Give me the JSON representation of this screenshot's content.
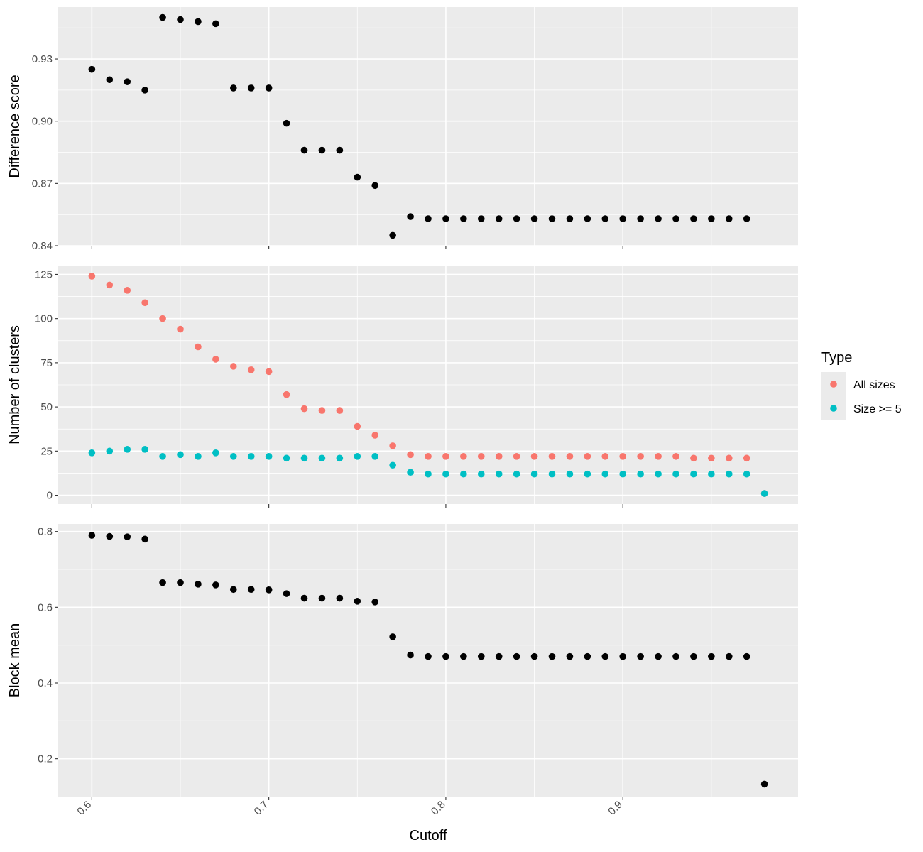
{
  "chart_data": [
    {
      "type": "scatter",
      "ylabel": "Difference score",
      "ylim": [
        0.84,
        0.955
      ],
      "yticks": [
        "0.84",
        "0.87",
        "0.90",
        "0.93"
      ],
      "x_tick_labels_visible": false,
      "grid": true,
      "series": [
        {
          "color": "#000000",
          "points": [
            [
              0.6,
              0.925
            ],
            [
              0.61,
              0.92
            ],
            [
              0.62,
              0.919
            ],
            [
              0.63,
              0.915
            ],
            [
              0.64,
              0.95
            ],
            [
              0.65,
              0.949
            ],
            [
              0.66,
              0.948
            ],
            [
              0.67,
              0.947
            ],
            [
              0.68,
              0.916
            ],
            [
              0.69,
              0.916
            ],
            [
              0.7,
              0.916
            ],
            [
              0.71,
              0.899
            ],
            [
              0.72,
              0.886
            ],
            [
              0.73,
              0.886
            ],
            [
              0.74,
              0.886
            ],
            [
              0.75,
              0.873
            ],
            [
              0.76,
              0.869
            ],
            [
              0.77,
              0.845
            ],
            [
              0.78,
              0.854
            ],
            [
              0.79,
              0.853
            ],
            [
              0.8,
              0.853
            ],
            [
              0.81,
              0.853
            ],
            [
              0.82,
              0.853
            ],
            [
              0.83,
              0.853
            ],
            [
              0.84,
              0.853
            ],
            [
              0.85,
              0.853
            ],
            [
              0.86,
              0.853
            ],
            [
              0.87,
              0.853
            ],
            [
              0.88,
              0.853
            ],
            [
              0.89,
              0.853
            ],
            [
              0.9,
              0.853
            ],
            [
              0.91,
              0.853
            ],
            [
              0.92,
              0.853
            ],
            [
              0.93,
              0.853
            ],
            [
              0.94,
              0.853
            ],
            [
              0.95,
              0.853
            ],
            [
              0.96,
              0.853
            ],
            [
              0.97,
              0.853
            ]
          ]
        }
      ]
    },
    {
      "type": "scatter",
      "ylabel": "Number of clusters",
      "ylim": [
        -5,
        130
      ],
      "yticks": [
        "0",
        "25",
        "50",
        "75",
        "100",
        "125"
      ],
      "x_tick_labels_visible": false,
      "grid": true,
      "legend": {
        "title": "Type",
        "position": "right"
      },
      "series": [
        {
          "name": "All sizes",
          "color": "#F8766D",
          "points": [
            [
              0.6,
              124
            ],
            [
              0.61,
              119
            ],
            [
              0.62,
              116
            ],
            [
              0.63,
              109
            ],
            [
              0.64,
              100
            ],
            [
              0.65,
              94
            ],
            [
              0.66,
              84
            ],
            [
              0.67,
              77
            ],
            [
              0.68,
              73
            ],
            [
              0.69,
              71
            ],
            [
              0.7,
              70
            ],
            [
              0.71,
              57
            ],
            [
              0.72,
              49
            ],
            [
              0.73,
              48
            ],
            [
              0.74,
              48
            ],
            [
              0.75,
              39
            ],
            [
              0.76,
              34
            ],
            [
              0.77,
              28
            ],
            [
              0.78,
              23
            ],
            [
              0.79,
              22
            ],
            [
              0.8,
              22
            ],
            [
              0.81,
              22
            ],
            [
              0.82,
              22
            ],
            [
              0.83,
              22
            ],
            [
              0.84,
              22
            ],
            [
              0.85,
              22
            ],
            [
              0.86,
              22
            ],
            [
              0.87,
              22
            ],
            [
              0.88,
              22
            ],
            [
              0.89,
              22
            ],
            [
              0.9,
              22
            ],
            [
              0.91,
              22
            ],
            [
              0.92,
              22
            ],
            [
              0.93,
              22
            ],
            [
              0.94,
              21
            ],
            [
              0.95,
              21
            ],
            [
              0.96,
              21
            ],
            [
              0.97,
              21
            ],
            [
              0.98,
              1
            ]
          ]
        },
        {
          "name": "Size >= 5",
          "color": "#00BFC4",
          "points": [
            [
              0.6,
              24
            ],
            [
              0.61,
              25
            ],
            [
              0.62,
              26
            ],
            [
              0.63,
              26
            ],
            [
              0.64,
              22
            ],
            [
              0.65,
              23
            ],
            [
              0.66,
              22
            ],
            [
              0.67,
              24
            ],
            [
              0.68,
              22
            ],
            [
              0.69,
              22
            ],
            [
              0.7,
              22
            ],
            [
              0.71,
              21
            ],
            [
              0.72,
              21
            ],
            [
              0.73,
              21
            ],
            [
              0.74,
              21
            ],
            [
              0.75,
              22
            ],
            [
              0.76,
              22
            ],
            [
              0.77,
              17
            ],
            [
              0.78,
              13
            ],
            [
              0.79,
              12
            ],
            [
              0.8,
              12
            ],
            [
              0.81,
              12
            ],
            [
              0.82,
              12
            ],
            [
              0.83,
              12
            ],
            [
              0.84,
              12
            ],
            [
              0.85,
              12
            ],
            [
              0.86,
              12
            ],
            [
              0.87,
              12
            ],
            [
              0.88,
              12
            ],
            [
              0.89,
              12
            ],
            [
              0.9,
              12
            ],
            [
              0.91,
              12
            ],
            [
              0.92,
              12
            ],
            [
              0.93,
              12
            ],
            [
              0.94,
              12
            ],
            [
              0.95,
              12
            ],
            [
              0.96,
              12
            ],
            [
              0.97,
              12
            ],
            [
              0.98,
              1
            ]
          ]
        }
      ]
    },
    {
      "type": "scatter",
      "xlabel": "Cutoff",
      "ylabel": "Block mean",
      "ylim": [
        0.1,
        0.82
      ],
      "yticks": [
        "0.2",
        "0.4",
        "0.6",
        "0.8"
      ],
      "xticks": [
        "0.6",
        "0.7",
        "0.8",
        "0.9"
      ],
      "x_tick_labels_visible": true,
      "grid": true,
      "series": [
        {
          "color": "#000000",
          "points": [
            [
              0.6,
              0.79
            ],
            [
              0.61,
              0.787
            ],
            [
              0.62,
              0.786
            ],
            [
              0.63,
              0.78
            ],
            [
              0.64,
              0.665
            ],
            [
              0.65,
              0.665
            ],
            [
              0.66,
              0.661
            ],
            [
              0.67,
              0.659
            ],
            [
              0.68,
              0.647
            ],
            [
              0.69,
              0.647
            ],
            [
              0.7,
              0.646
            ],
            [
              0.71,
              0.636
            ],
            [
              0.72,
              0.624
            ],
            [
              0.73,
              0.624
            ],
            [
              0.74,
              0.624
            ],
            [
              0.75,
              0.616
            ],
            [
              0.76,
              0.614
            ],
            [
              0.77,
              0.522
            ],
            [
              0.78,
              0.474
            ],
            [
              0.79,
              0.47
            ],
            [
              0.8,
              0.47
            ],
            [
              0.81,
              0.47
            ],
            [
              0.82,
              0.47
            ],
            [
              0.83,
              0.47
            ],
            [
              0.84,
              0.47
            ],
            [
              0.85,
              0.47
            ],
            [
              0.86,
              0.47
            ],
            [
              0.87,
              0.47
            ],
            [
              0.88,
              0.47
            ],
            [
              0.89,
              0.47
            ],
            [
              0.9,
              0.47
            ],
            [
              0.91,
              0.47
            ],
            [
              0.92,
              0.47
            ],
            [
              0.93,
              0.47
            ],
            [
              0.94,
              0.47
            ],
            [
              0.95,
              0.47
            ],
            [
              0.96,
              0.47
            ],
            [
              0.97,
              0.47
            ],
            [
              0.98,
              0.133
            ]
          ]
        }
      ]
    }
  ],
  "x_range": [
    0.581,
    0.999
  ]
}
